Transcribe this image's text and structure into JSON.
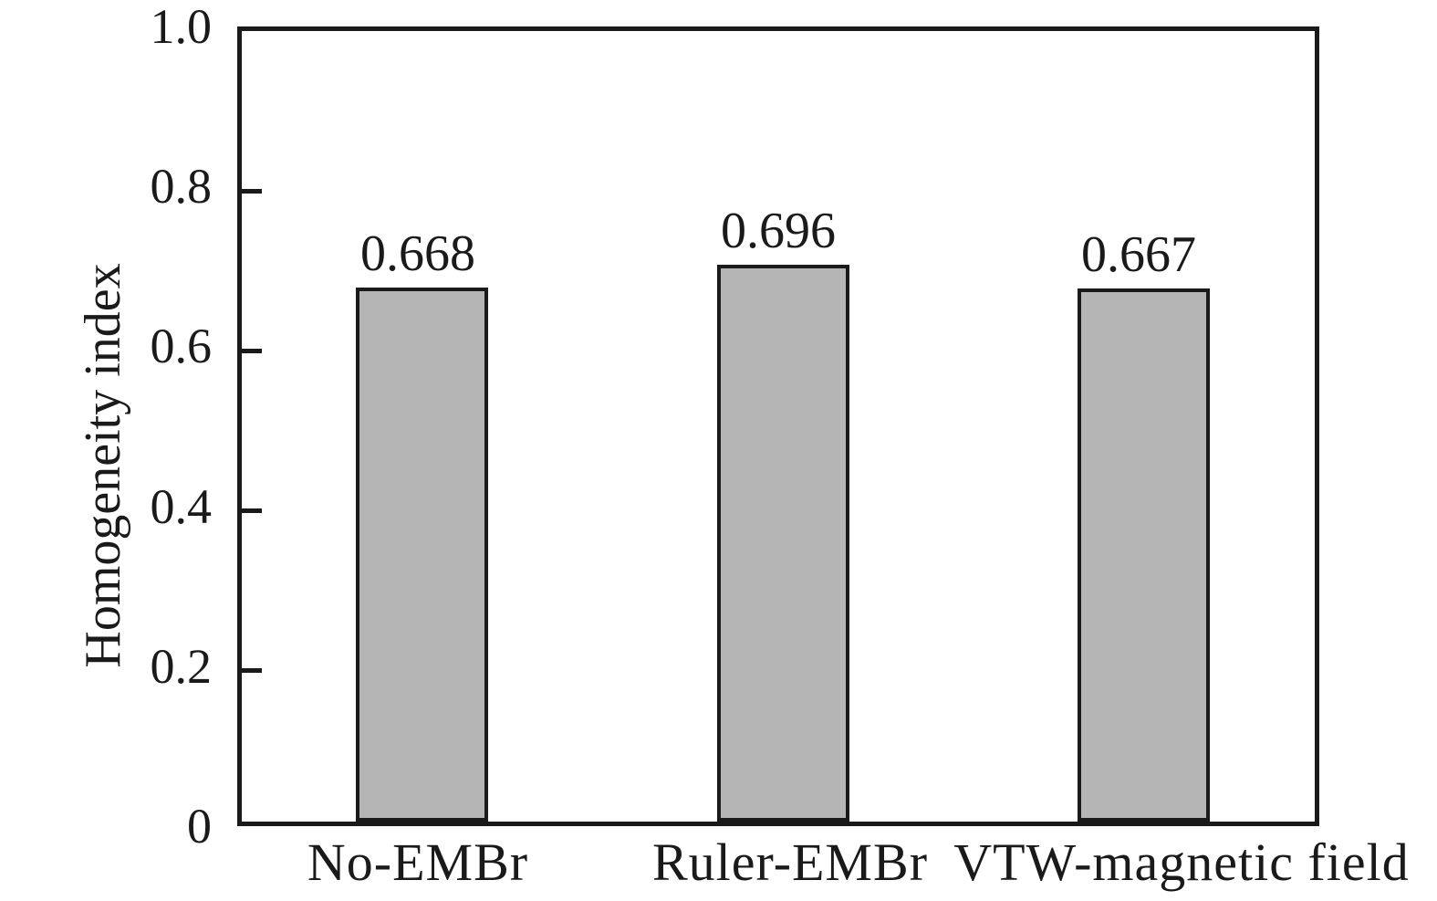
{
  "page": {
    "background_color": "#ffffff"
  },
  "chart_data": {
    "type": "bar",
    "title": "",
    "xlabel": "",
    "ylabel": "Homogeneity index",
    "categories": [
      "No-EMBr",
      "Ruler-EMBr",
      "VTW-magnetic field"
    ],
    "values": [
      0.668,
      0.696,
      0.667
    ],
    "value_labels": [
      "0.668",
      "0.696",
      "0.667"
    ],
    "ylim": [
      0,
      1.0
    ],
    "yticks": [
      {
        "label": "1.0",
        "value": 1.0
      },
      {
        "label": "0.8",
        "value": 0.8
      },
      {
        "label": "0.6",
        "value": 0.6
      },
      {
        "label": "0.4",
        "value": 0.4
      },
      {
        "label": "0.2",
        "value": 0.2
      },
      {
        "label": "0",
        "value": 0.0
      }
    ],
    "grid": false,
    "legend_position": "none",
    "bar_fill_color": "#b5b5b5",
    "bar_border_color": "#1a1a1a",
    "axis_color": "#1a1a1a",
    "text_color": "#1a1a1a"
  }
}
